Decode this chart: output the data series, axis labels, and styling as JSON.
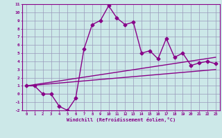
{
  "xlabel": "Windchill (Refroidissement éolien,°C)",
  "x_values": [
    0,
    1,
    2,
    3,
    4,
    5,
    6,
    7,
    8,
    9,
    10,
    11,
    12,
    13,
    14,
    15,
    16,
    17,
    18,
    19,
    20,
    21,
    22,
    23
  ],
  "y_main": [
    1,
    1,
    0,
    0,
    -1.5,
    -2,
    -0.5,
    5.5,
    8.5,
    9,
    10.8,
    9.3,
    8.5,
    8.8,
    5,
    5.3,
    4.3,
    6.8,
    4.5,
    5,
    3.5,
    3.8,
    4,
    3.7
  ],
  "y_line1": [
    1.0,
    1.087,
    1.174,
    1.261,
    1.348,
    1.435,
    1.522,
    1.609,
    1.696,
    1.783,
    1.87,
    1.957,
    2.043,
    2.13,
    2.217,
    2.304,
    2.391,
    2.478,
    2.565,
    2.652,
    2.739,
    2.826,
    2.913,
    3.0
  ],
  "y_line2": [
    1.0,
    1.152,
    1.304,
    1.457,
    1.609,
    1.761,
    1.913,
    2.065,
    2.217,
    2.37,
    2.522,
    2.674,
    2.826,
    2.978,
    3.13,
    3.283,
    3.435,
    3.587,
    3.739,
    3.891,
    4.043,
    4.196,
    4.348,
    4.5
  ],
  "ylim": [
    -2,
    11
  ],
  "xlim": [
    -0.5,
    23.5
  ],
  "bg_color": "#cce8e8",
  "grid_color": "#9999bb",
  "line_color": "#880088",
  "line_width": 1.0,
  "marker": "D",
  "marker_size": 2.5
}
